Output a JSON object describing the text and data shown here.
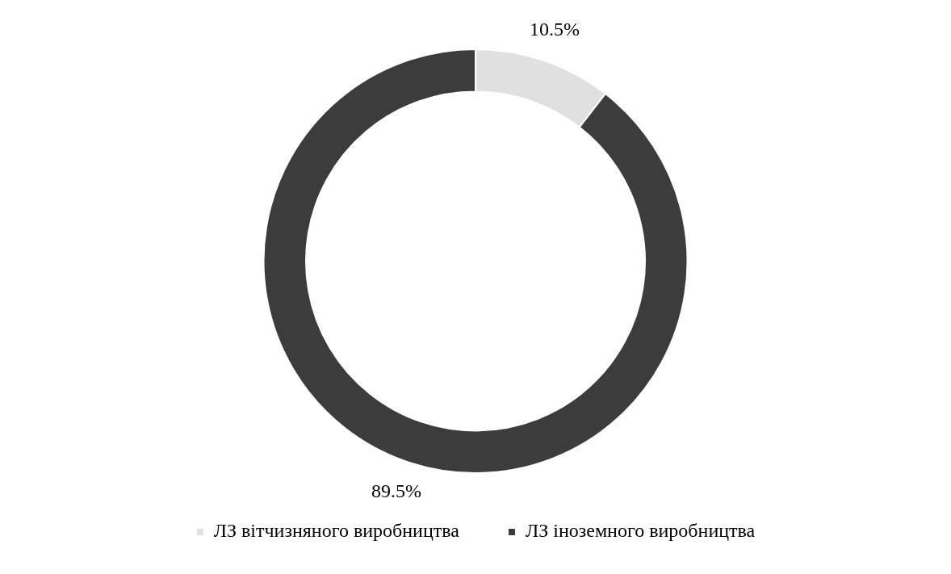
{
  "chart_data": {
    "type": "donut",
    "categories": [
      "ЛЗ вітчизняного виробництва",
      "ЛЗ іноземного виробництва"
    ],
    "values": [
      10.5,
      89.5
    ],
    "colors": [
      "#e0e0e0",
      "#3c3c3c"
    ],
    "value_labels": [
      "10.5%",
      "89.5%"
    ],
    "legend": "bottom"
  }
}
